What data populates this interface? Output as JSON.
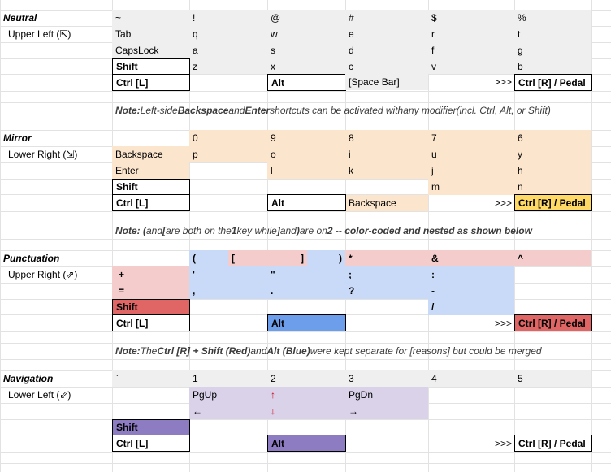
{
  "colors": {
    "gray": "#efefef",
    "orange": "#fce5cd",
    "yellow": "#ffd966",
    "blue": "#c9daf8",
    "blue_strong": "#6d9eeb",
    "red": "#f4cccc",
    "red_strong": "#e06666",
    "purple": "#d9d2e9",
    "purple_strong": "#8e7cc3"
  },
  "neutral": {
    "title": "Neutral",
    "subtitle": "Upper Left (⇱)",
    "row1": [
      "~",
      "!",
      "@",
      "#",
      "$",
      "%"
    ],
    "row2": [
      "Tab",
      "q",
      "w",
      "e",
      "r",
      "t"
    ],
    "row3": [
      "CapsLock",
      "a",
      "s",
      "d",
      "f",
      "g"
    ],
    "row4": [
      "Shift",
      "z",
      "x",
      "c",
      "v",
      "b"
    ],
    "row5": {
      "ctrl_l": "Ctrl [L]",
      "alt": "Alt",
      "space": "[Space Bar]",
      "arrows": ">>>",
      "ctrl_r": "Ctrl [R] / Pedal"
    }
  },
  "note1": {
    "prefix": "Note:",
    "t1": " Left-side ",
    "b1": "Backspace",
    "t2": " and ",
    "b2": "Enter",
    "t3": " shortcuts can be activated with ",
    "u1": "any modifier",
    "t4": " (incl. Ctrl, Alt, or Shift)"
  },
  "mirror": {
    "title": "Mirror",
    "subtitle": "Lower Right (⇲)",
    "row1": [
      "0",
      "9",
      "8",
      "7",
      "6"
    ],
    "row2": [
      "Backspace",
      "p",
      "o",
      "i",
      "u",
      "y"
    ],
    "row3": [
      "Enter",
      "l",
      "k",
      "j",
      "h"
    ],
    "row4": [
      "Shift",
      "m",
      "n"
    ],
    "row5": {
      "ctrl_l": "Ctrl [L]",
      "alt": "Alt",
      "backspace": "Backspace",
      "arrows": ">>>",
      "ctrl_r": "Ctrl [R] / Pedal"
    }
  },
  "note2": {
    "prefix": "Note: (",
    "t1": " and ",
    "b1": "[",
    "t2": " are both on the ",
    "b2": "1",
    "t3": " key while ",
    "b3": "]",
    "t4": " and ",
    "b4": ")",
    "t5": " are on ",
    "b5": "2 -- color-coded and nested as shown below"
  },
  "punctuation": {
    "title": "Punctuation",
    "subtitle": "Upper Right (⇗)",
    "row1": [
      "(",
      "[",
      "]",
      ")",
      "*",
      "&",
      "^"
    ],
    "row2": [
      "+",
      "'",
      "\"",
      ";",
      ":"
    ],
    "row3": [
      "=",
      ",",
      ".",
      "?",
      "-"
    ],
    "row4": [
      "Shift",
      "/"
    ],
    "row5": {
      "ctrl_l": "Ctrl [L]",
      "alt": "Alt",
      "arrows": ">>>",
      "ctrl_r": "Ctrl [R] / Pedal"
    }
  },
  "note3": {
    "prefix": "Note:",
    "t1": " The ",
    "b1": "Ctrl [R] + Shift (Red)",
    "t2": " and ",
    "b2": "Alt (Blue)",
    "t3": " were kept separate for [reasons] but could be merged"
  },
  "navigation": {
    "title": "Navigation",
    "subtitle": "Lower Left (⇙)",
    "row1": [
      "`",
      "1",
      "2",
      "3",
      "4",
      "5"
    ],
    "row2": [
      "PgUp",
      "↑",
      "PgDn"
    ],
    "row3": [
      "←",
      "↓",
      "→"
    ],
    "row4": [
      "Shift"
    ],
    "row5": {
      "ctrl_l": "Ctrl [L]",
      "alt": "Alt",
      "arrows": ">>>",
      "ctrl_r": "Ctrl [R] / Pedal"
    }
  }
}
